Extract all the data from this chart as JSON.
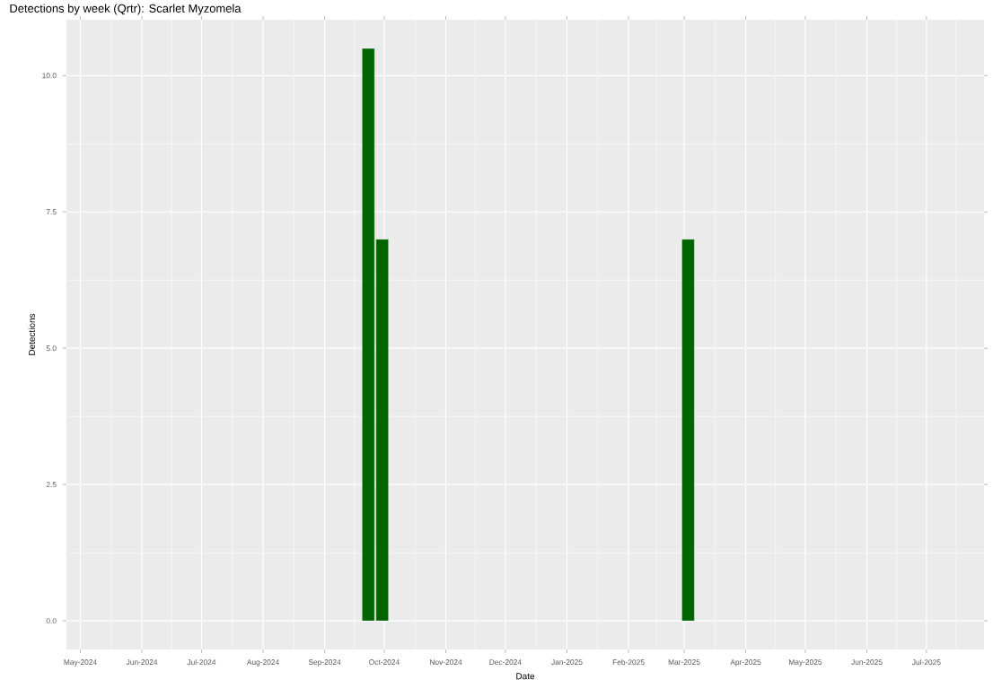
{
  "chart_data": {
    "type": "bar",
    "title": "Detections by week (Qrtr): Scarlet Myzomela",
    "xlabel": "Date",
    "ylabel": "Detections",
    "x": [
      "2024-09-23",
      "2024-09-30",
      "2025-03-03"
    ],
    "values": [
      10.5,
      7,
      7
    ],
    "color": "#006400",
    "xlim": [
      "2024-04-24",
      "2025-07-30"
    ],
    "xticks": [
      {
        "value": "2024-05-01",
        "label": "May-2024"
      },
      {
        "value": "2024-06-01",
        "label": "Jun-2024"
      },
      {
        "value": "2024-07-01",
        "label": "Jul-2024"
      },
      {
        "value": "2024-08-01",
        "label": "Aug-2024"
      },
      {
        "value": "2024-09-01",
        "label": "Sep-2024"
      },
      {
        "value": "2024-10-01",
        "label": "Oct-2024"
      },
      {
        "value": "2024-11-01",
        "label": "Nov-2024"
      },
      {
        "value": "2024-12-01",
        "label": "Dec-2024"
      },
      {
        "value": "2025-01-01",
        "label": "Jan-2025"
      },
      {
        "value": "2025-02-01",
        "label": "Feb-2025"
      },
      {
        "value": "2025-03-01",
        "label": "Mar-2025"
      },
      {
        "value": "2025-04-01",
        "label": "Apr-2025"
      },
      {
        "value": "2025-05-01",
        "label": "May-2025"
      },
      {
        "value": "2025-06-01",
        "label": "Jun-2025"
      },
      {
        "value": "2025-07-01",
        "label": "Jul-2025"
      }
    ],
    "ylim": [
      -0.525,
      11.025
    ],
    "yticks": [
      {
        "value": 0,
        "label": "0.0"
      },
      {
        "value": 2.5,
        "label": "2.5"
      },
      {
        "value": 5,
        "label": "5.0"
      },
      {
        "value": 7.5,
        "label": "7.5"
      },
      {
        "value": 10,
        "label": "10.0"
      }
    ],
    "grid": true
  }
}
